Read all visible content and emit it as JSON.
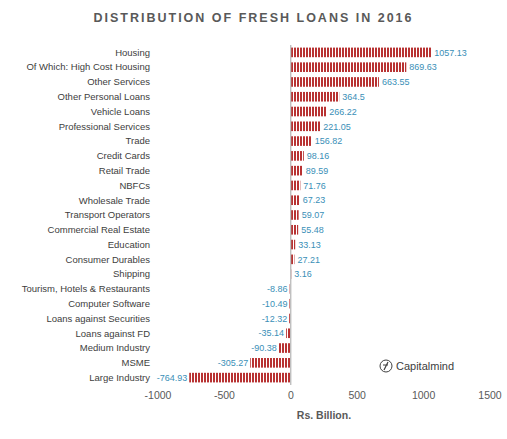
{
  "chart_data": {
    "type": "bar",
    "orientation": "horizontal",
    "title": "DISTRIBUTION OF FRESH LOANS IN 2016",
    "xlabel": "Rs. Billion.",
    "annotation": "Capitalmind",
    "categories": [
      "Housing",
      "Of Which: High Cost Housing",
      "Other Services",
      "Other Personal Loans",
      "Vehicle Loans",
      "Professional Services",
      "Trade",
      "Credit Cards",
      "Retail Trade",
      "NBFCs",
      "Wholesale Trade",
      "Transport Operators",
      "Commercial Real Estate",
      "Education",
      "Consumer Durables",
      "Shipping",
      "Tourism, Hotels & Restaurants",
      "Computer Software",
      "Loans against Securities",
      "Loans against FD",
      "Medium Industry",
      "MSME",
      "Large Industry"
    ],
    "values": [
      1057.13,
      869.63,
      663.55,
      364.5,
      266.22,
      221.05,
      156.82,
      98.16,
      89.59,
      71.76,
      67.23,
      59.07,
      55.48,
      33.13,
      27.21,
      3.16,
      -8.86,
      -10.49,
      -12.32,
      -35.14,
      -90.38,
      -305.27,
      -764.93
    ],
    "color": "#b83232",
    "xlim": [
      -1000,
      1500
    ],
    "xticks": [
      -1000,
      -500,
      0,
      500,
      1000,
      1500
    ],
    "grid": false,
    "data_labels": true
  }
}
